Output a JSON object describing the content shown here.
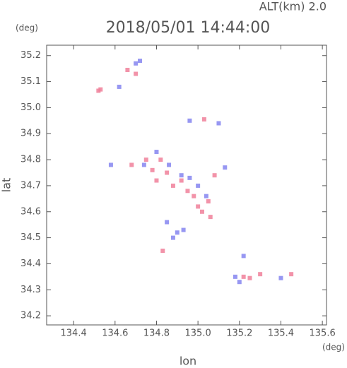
{
  "chart_data": {
    "type": "scatter",
    "title": "2018/05/01 14:44:00",
    "subtitle": "ALT(km) 2.0",
    "x_label": "lon",
    "y_label": "lat",
    "x_unit": "(deg)",
    "y_unit": "(deg)",
    "xlim": [
      134.27,
      135.62
    ],
    "ylim": [
      34.165,
      35.24
    ],
    "xticks": [
      134.4,
      134.6,
      134.8,
      {
        "value": 135,
        "label": "135.0"
      },
      135.2,
      135.4,
      135.6
    ],
    "yticks": [
      34.2,
      34.3,
      34.4,
      34.5,
      34.6,
      34.7,
      34.8,
      34.9,
      {
        "value": 35,
        "label": "35.0"
      },
      35.1,
      35.2
    ],
    "series": [
      {
        "color": "#f0809a",
        "x": [
          134.52,
          134.53,
          134.66,
          134.7,
          134.68,
          134.75,
          134.78,
          134.82,
          134.85,
          134.88,
          134.92,
          134.95,
          135.0,
          135.02,
          135.05,
          135.06,
          135.08,
          134.83,
          135.03,
          135.22,
          135.25,
          135.3,
          135.45,
          134.8,
          134.98
        ],
        "y": [
          35.065,
          35.07,
          35.145,
          35.13,
          34.78,
          34.8,
          34.76,
          34.8,
          34.75,
          34.7,
          34.72,
          34.68,
          34.62,
          34.6,
          34.64,
          34.58,
          34.74,
          34.45,
          34.955,
          34.35,
          34.345,
          34.36,
          34.36,
          34.72,
          34.66
        ]
      },
      {
        "color": "#8585f0",
        "x": [
          134.7,
          134.72,
          134.62,
          134.74,
          134.8,
          134.86,
          134.92,
          134.96,
          135.0,
          135.04,
          134.9,
          134.93,
          134.85,
          135.1,
          135.13,
          135.4,
          135.2,
          135.18,
          135.22,
          134.58,
          134.96,
          134.88
        ],
        "y": [
          35.17,
          35.18,
          35.08,
          34.78,
          34.83,
          34.78,
          34.74,
          34.73,
          34.7,
          34.66,
          34.52,
          34.53,
          34.56,
          34.94,
          34.77,
          34.345,
          34.33,
          34.35,
          34.43,
          34.78,
          34.95,
          34.5
        ]
      }
    ]
  }
}
